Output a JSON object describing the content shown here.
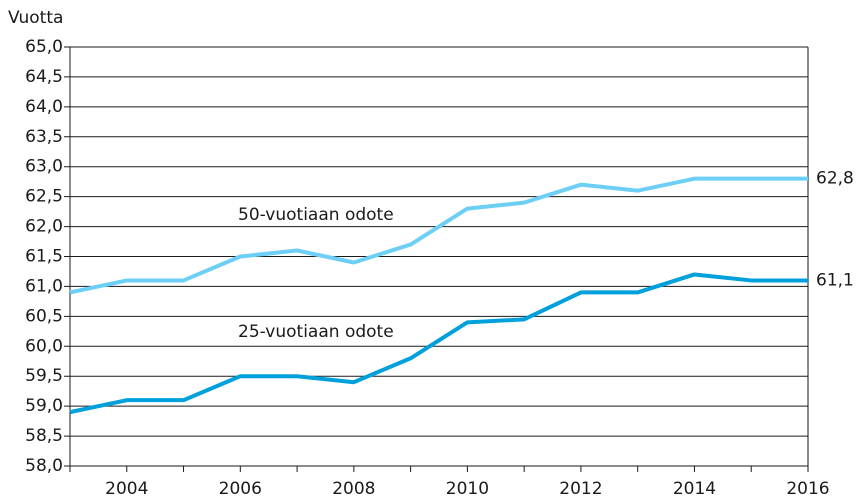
{
  "chart_data": {
    "type": "line",
    "y_label": "Vuotta",
    "x": [
      2003,
      2004,
      2005,
      2006,
      2007,
      2008,
      2009,
      2010,
      2011,
      2012,
      2013,
      2014,
      2015,
      2016
    ],
    "xlim": [
      2003,
      2016
    ],
    "xticks": [
      2004,
      2006,
      2008,
      2010,
      2012,
      2014,
      2016
    ],
    "ylim": [
      58,
      65
    ],
    "yticks": [
      {
        "value": 58,
        "label": "58,0"
      },
      {
        "value": 58.5,
        "label": "58,5"
      },
      {
        "value": 59,
        "label": "59,0"
      },
      {
        "value": 59.5,
        "label": "59,5"
      },
      {
        "value": 60,
        "label": "60,0"
      },
      {
        "value": 60.5,
        "label": "60,5"
      },
      {
        "value": 61,
        "label": "61,0"
      },
      {
        "value": 61.5,
        "label": "61,5"
      },
      {
        "value": 62,
        "label": "62,0"
      },
      {
        "value": 62.5,
        "label": "62,5"
      },
      {
        "value": 63,
        "label": "63,0"
      },
      {
        "value": 63.5,
        "label": "63,5"
      },
      {
        "value": 64,
        "label": "64,0"
      },
      {
        "value": 64.5,
        "label": "64,5"
      },
      {
        "value": 65,
        "label": "65,0"
      }
    ],
    "grid": true,
    "series": [
      {
        "name": "50-vuotiaan odote",
        "color": "#6dcff6",
        "values": [
          60.9,
          61.1,
          61.1,
          61.5,
          61.6,
          61.4,
          61.7,
          62.3,
          62.4,
          62.7,
          62.6,
          62.8,
          62.8,
          62.8
        ],
        "value_labels": [
          null,
          null,
          null,
          null,
          null,
          null,
          null,
          null,
          null,
          null,
          null,
          null,
          null,
          "62,8"
        ]
      },
      {
        "name": "25-vuotiaan odote",
        "color": "#00a0dc",
        "values": [
          58.9,
          59.1,
          59.1,
          59.5,
          59.5,
          59.4,
          59.8,
          60.4,
          60.45,
          60.9,
          60.9,
          61.2,
          61.1,
          61.1
        ],
        "value_labels": [
          null,
          null,
          null,
          null,
          null,
          null,
          null,
          null,
          null,
          null,
          null,
          null,
          null,
          "61,1"
        ]
      }
    ]
  }
}
